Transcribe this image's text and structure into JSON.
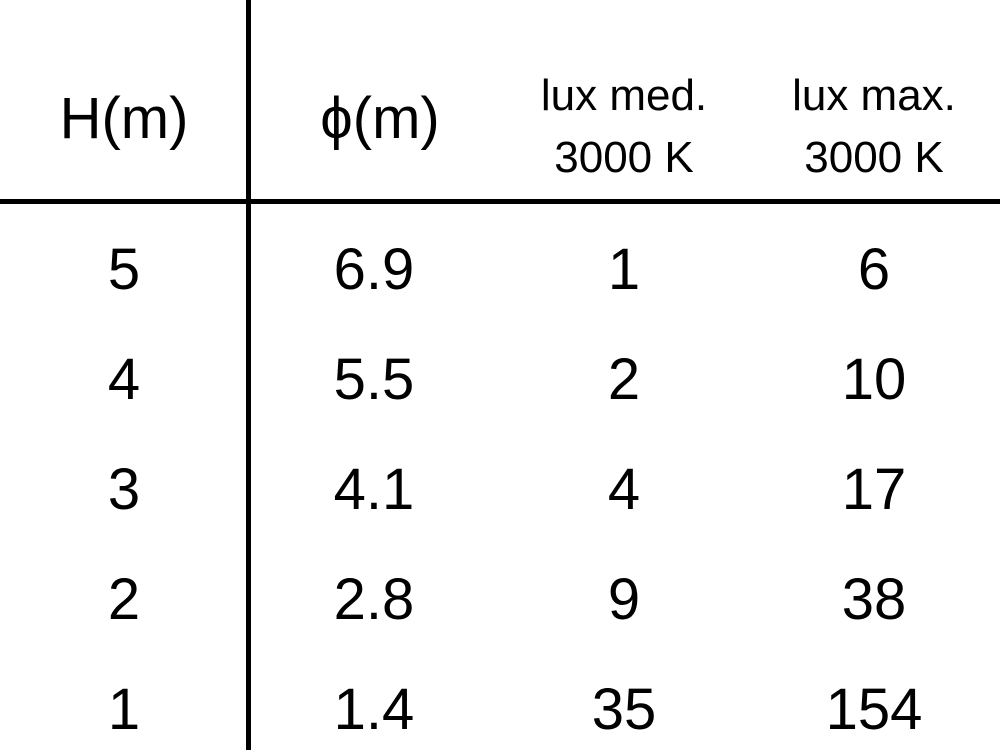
{
  "table": {
    "headers": [
      "H(m)",
      "ϕ(m)",
      "lux med.\n3000 K",
      "lux max.\n3000 K"
    ],
    "header_lines": [
      [
        "H(m)"
      ],
      [
        "ϕ(m)"
      ],
      [
        "lux med.",
        "3000 K"
      ],
      [
        "lux max.",
        "3000 K"
      ]
    ],
    "rows": [
      [
        "5",
        "6.9",
        "1",
        "6"
      ],
      [
        "4",
        "5.5",
        "2",
        "10"
      ],
      [
        "3",
        "4.1",
        "4",
        "17"
      ],
      [
        "2",
        "2.8",
        "9",
        "38"
      ],
      [
        "1",
        "1.4",
        "35",
        "154"
      ]
    ]
  }
}
